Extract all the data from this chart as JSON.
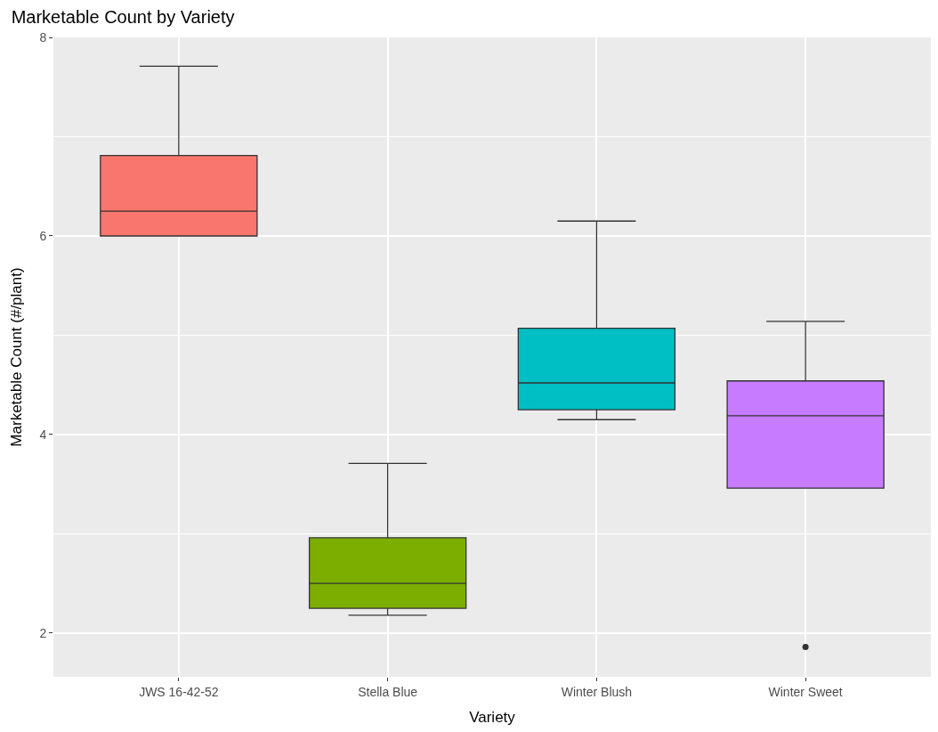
{
  "chart_data": {
    "type": "box",
    "title": "Marketable Count by Variety",
    "xlabel": "Variety",
    "ylabel": "Marketable Count (#/plant)",
    "categories": [
      "JWS 16-42-52",
      "Stella Blue",
      "Winter Blush",
      "Winter Sweet"
    ],
    "colors": [
      "#f8766d",
      "#7cae00",
      "#00bfc4",
      "#c77cff"
    ],
    "boxes": [
      {
        "low": 6.0,
        "q1": 6.0,
        "median": 6.25,
        "q3": 6.81,
        "high": 7.71
      },
      {
        "low": 2.18,
        "q1": 2.25,
        "median": 2.5,
        "q3": 2.96,
        "high": 3.71
      },
      {
        "low": 4.15,
        "q1": 4.25,
        "median": 4.52,
        "q3": 5.07,
        "high": 6.15
      },
      {
        "low": 3.46,
        "q1": 3.46,
        "median": 4.19,
        "q3": 4.54,
        "high": 5.14,
        "outliers": [
          1.86
        ]
      }
    ],
    "ylim": [
      1.56,
      8.0
    ],
    "yticks": [
      2,
      4,
      6,
      8
    ],
    "grid": true,
    "legend": false
  }
}
